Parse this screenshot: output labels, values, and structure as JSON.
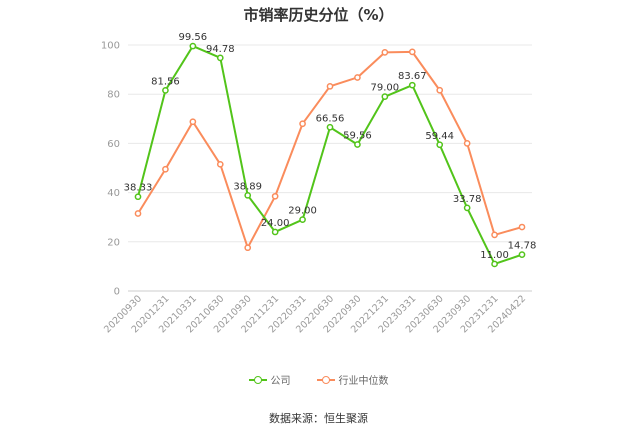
{
  "colors": {
    "company": "#52c41a",
    "industry": "#fa8c5c",
    "grid": "#e8e8e8",
    "axis_text": "#999999"
  },
  "legend": {
    "company_label": "公司",
    "industry_label": "行业中位数"
  },
  "source": "数据来源：恒生聚源",
  "chart_data": {
    "type": "line",
    "title": "市销率历史分位（%）",
    "categories": [
      "20200930",
      "20201231",
      "20210331",
      "20210630",
      "20210930",
      "20211231",
      "20220331",
      "20220630",
      "20220930",
      "20221231",
      "20230331",
      "20230630",
      "20230930",
      "20231231",
      "20240422"
    ],
    "ylim": [
      0,
      100
    ],
    "yticks": [
      0,
      20,
      40,
      60,
      80,
      100
    ],
    "grid": true,
    "legend_position": "bottom",
    "series": [
      {
        "name": "公司",
        "values": [
          38.33,
          81.56,
          99.56,
          94.78,
          38.89,
          24.0,
          29.0,
          66.56,
          59.56,
          79.0,
          83.67,
          59.44,
          33.78,
          11.0,
          14.78
        ],
        "labels": [
          "38.33",
          "81.56",
          "99.56",
          "94.78",
          "38.89",
          "24.00",
          "29.00",
          "66.56",
          "59.56",
          "79.00",
          "83.67",
          "59.44",
          "33.78",
          "11.00",
          "14.78"
        ]
      },
      {
        "name": "行业中位数",
        "values": [
          31.5,
          49.5,
          68.8,
          51.5,
          17.6,
          38.5,
          68.0,
          83.2,
          86.8,
          97.0,
          97.2,
          81.6,
          60.0,
          22.8,
          26.0
        ]
      }
    ]
  }
}
